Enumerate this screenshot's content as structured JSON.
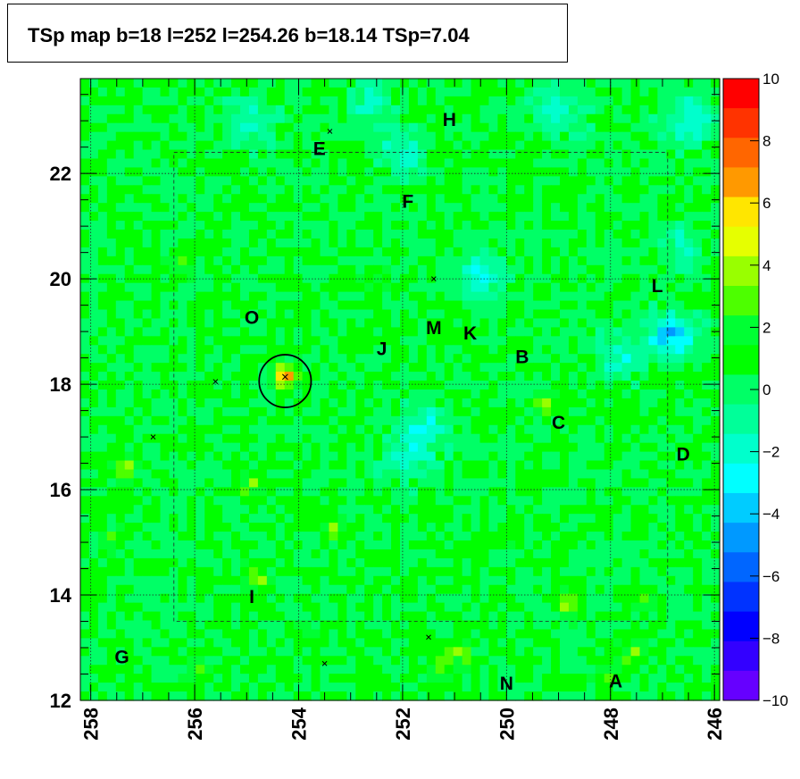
{
  "title": "TSp map b=18 l=252 l=254.26 b=18.14 TSp=7.04",
  "chart_data": {
    "type": "heatmap",
    "xlim": [
      258.2,
      245.9
    ],
    "ylim": [
      12.0,
      23.8
    ],
    "x_axis_reversed": true,
    "x_ticks": [
      258,
      256,
      254,
      252,
      250,
      248,
      246
    ],
    "y_ticks": [
      12,
      14,
      16,
      18,
      20,
      22
    ],
    "colorbar": {
      "range": [
        -10,
        10
      ],
      "tick_labels": [
        "10",
        "8",
        "6",
        "4",
        "2",
        "0",
        "−2",
        "−4",
        "−6",
        "−8",
        "−10"
      ]
    },
    "background_level": 0.5,
    "max_marker": {
      "l": 254.26,
      "b": 18.14,
      "ts": 7.04
    },
    "hotspots": [
      {
        "l": 254.26,
        "b": 18.14,
        "ts": 7.0
      },
      {
        "l": 257.4,
        "b": 16.4,
        "ts": 4.0
      },
      {
        "l": 256.3,
        "b": 20.2,
        "ts": 3.5
      },
      {
        "l": 254.9,
        "b": 16.1,
        "ts": 3.5
      },
      {
        "l": 254.8,
        "b": 14.3,
        "ts": 3.5
      },
      {
        "l": 257.6,
        "b": 15.0,
        "ts": 3.0
      },
      {
        "l": 253.3,
        "b": 15.3,
        "ts": 3.0
      },
      {
        "l": 250.9,
        "b": 12.9,
        "ts": 4.0
      },
      {
        "l": 251.3,
        "b": 12.6,
        "ts": 3.0
      },
      {
        "l": 248.8,
        "b": 13.8,
        "ts": 4.0
      },
      {
        "l": 247.6,
        "b": 12.9,
        "ts": 3.5
      },
      {
        "l": 249.3,
        "b": 17.6,
        "ts": 3.5
      },
      {
        "l": 247.3,
        "b": 13.9,
        "ts": 2.5
      },
      {
        "l": 256.0,
        "b": 12.6,
        "ts": 2.5
      },
      {
        "l": 253.9,
        "b": 13.4,
        "ts": 2.0
      },
      {
        "l": 248.1,
        "b": 12.5,
        "ts": 3.0
      },
      {
        "l": 252.5,
        "b": 20.0,
        "ts": 2.0
      },
      {
        "l": 250.0,
        "b": 15.0,
        "ts": 2.0
      }
    ],
    "coldspots": [
      {
        "l": 246.8,
        "b": 18.9,
        "ts": -4.0
      },
      {
        "l": 251.6,
        "b": 17.2,
        "ts": -2.5
      },
      {
        "l": 250.5,
        "b": 20.1,
        "ts": -2.5
      },
      {
        "l": 252.0,
        "b": 22.4,
        "ts": -2.0
      },
      {
        "l": 249.0,
        "b": 23.2,
        "ts": -2.0
      },
      {
        "l": 246.5,
        "b": 23.0,
        "ts": -2.5
      },
      {
        "l": 247.8,
        "b": 18.5,
        "ts": -2.0
      },
      {
        "l": 251.9,
        "b": 16.6,
        "ts": -2.0
      },
      {
        "l": 252.6,
        "b": 23.3,
        "ts": -1.5
      },
      {
        "l": 255.0,
        "b": 23.0,
        "ts": -1.5
      },
      {
        "l": 246.6,
        "b": 20.6,
        "ts": -1.5
      }
    ],
    "circle": {
      "l": 254.26,
      "b": 18.06,
      "radius_deg": 0.5
    },
    "x_markers": [
      {
        "l": 253.4,
        "b": 22.8
      },
      {
        "l": 251.4,
        "b": 20.0
      },
      {
        "l": 255.6,
        "b": 18.05
      },
      {
        "l": 256.8,
        "b": 17.0
      },
      {
        "l": 251.5,
        "b": 13.2
      },
      {
        "l": 253.5,
        "b": 12.7
      }
    ],
    "sources": [
      {
        "label": "H",
        "l": 251.1,
        "b": 22.9
      },
      {
        "label": "E",
        "l": 253.6,
        "b": 22.35
      },
      {
        "label": "F",
        "l": 251.9,
        "b": 21.35
      },
      {
        "label": "L",
        "l": 247.1,
        "b": 19.75
      },
      {
        "label": "O",
        "l": 254.9,
        "b": 19.15
      },
      {
        "label": "M",
        "l": 251.4,
        "b": 18.95
      },
      {
        "label": "K",
        "l": 250.7,
        "b": 18.85
      },
      {
        "label": "J",
        "l": 252.4,
        "b": 18.55
      },
      {
        "label": "B",
        "l": 249.7,
        "b": 18.4
      },
      {
        "label": "C",
        "l": 249.0,
        "b": 17.15
      },
      {
        "label": "D",
        "l": 246.6,
        "b": 16.55
      },
      {
        "label": "I",
        "l": 254.9,
        "b": 13.85
      },
      {
        "label": "G",
        "l": 257.4,
        "b": 12.7
      },
      {
        "label": "N",
        "l": 250.0,
        "b": 12.2
      },
      {
        "label": "A",
        "l": 247.9,
        "b": 12.25
      }
    ]
  }
}
